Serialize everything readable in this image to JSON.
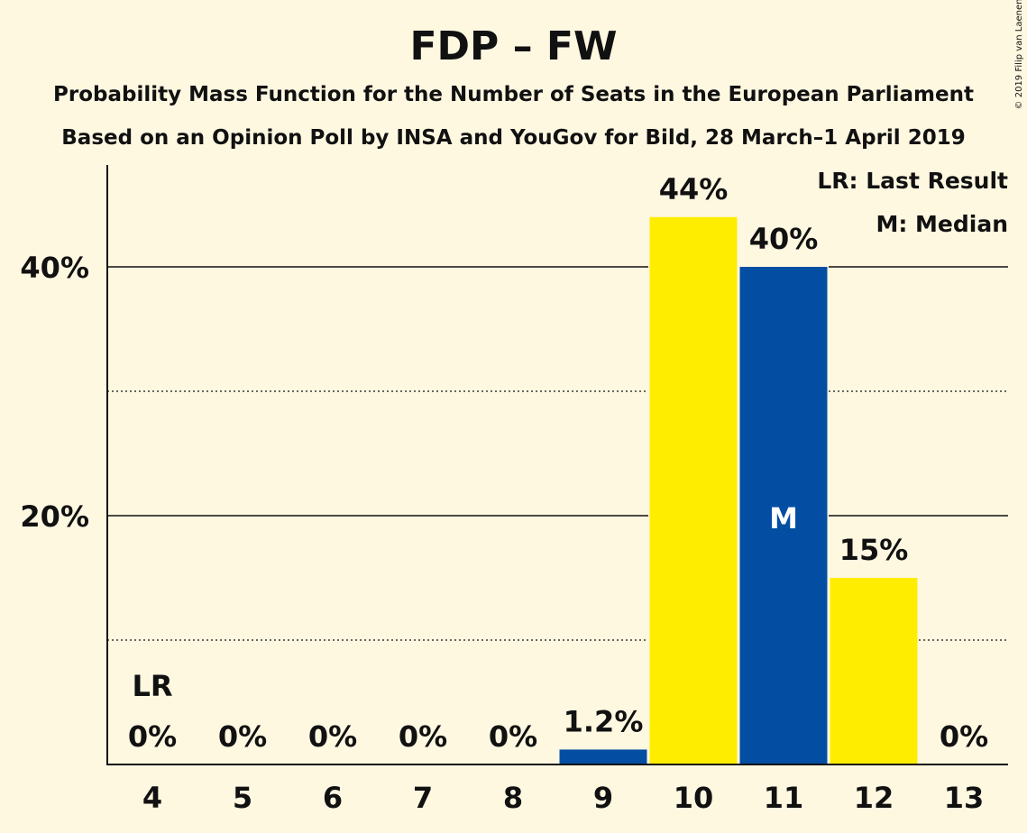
{
  "chart_data": {
    "type": "bar",
    "title": "FDP – FW",
    "subtitle_line1": "Probability Mass Function for the Number of Seats in the European Parliament",
    "subtitle_line2": "Based on an Opinion Poll by INSA and YouGov for Bild, 28 March–1 April 2019",
    "copyright": "© 2019 Filip van Laenen",
    "categories": [
      "4",
      "5",
      "6",
      "7",
      "8",
      "9",
      "10",
      "11",
      "12",
      "13"
    ],
    "values": [
      0,
      0,
      0,
      0,
      0,
      1.2,
      44,
      40,
      15,
      0
    ],
    "value_labels": [
      "0%",
      "0%",
      "0%",
      "0%",
      "0%",
      "1.2%",
      "44%",
      "40%",
      "15%",
      "0%"
    ],
    "bar_colors": [
      "#fff8e1",
      "#fff8e1",
      "#fff8e1",
      "#fff8e1",
      "#fff8e1",
      "#034ea2",
      "#ffed00",
      "#034ea2",
      "#ffed00",
      "#fff8e1"
    ],
    "colors": {
      "blue": "#034ea2",
      "yellow": "#ffed00",
      "background": "#fff8e1"
    },
    "ylim": [
      0,
      48
    ],
    "y_ticks": [
      {
        "value": 20,
        "label": "20%"
      },
      {
        "value": 40,
        "label": "40%"
      }
    ],
    "minor_grid": [
      10,
      30
    ],
    "grid": true,
    "legend": {
      "placement": "top-right",
      "items": [
        "LR: Last Result",
        "M: Median"
      ]
    },
    "last_result": {
      "category": "4",
      "label": "LR"
    },
    "median": {
      "category": "11",
      "label": "M"
    }
  }
}
